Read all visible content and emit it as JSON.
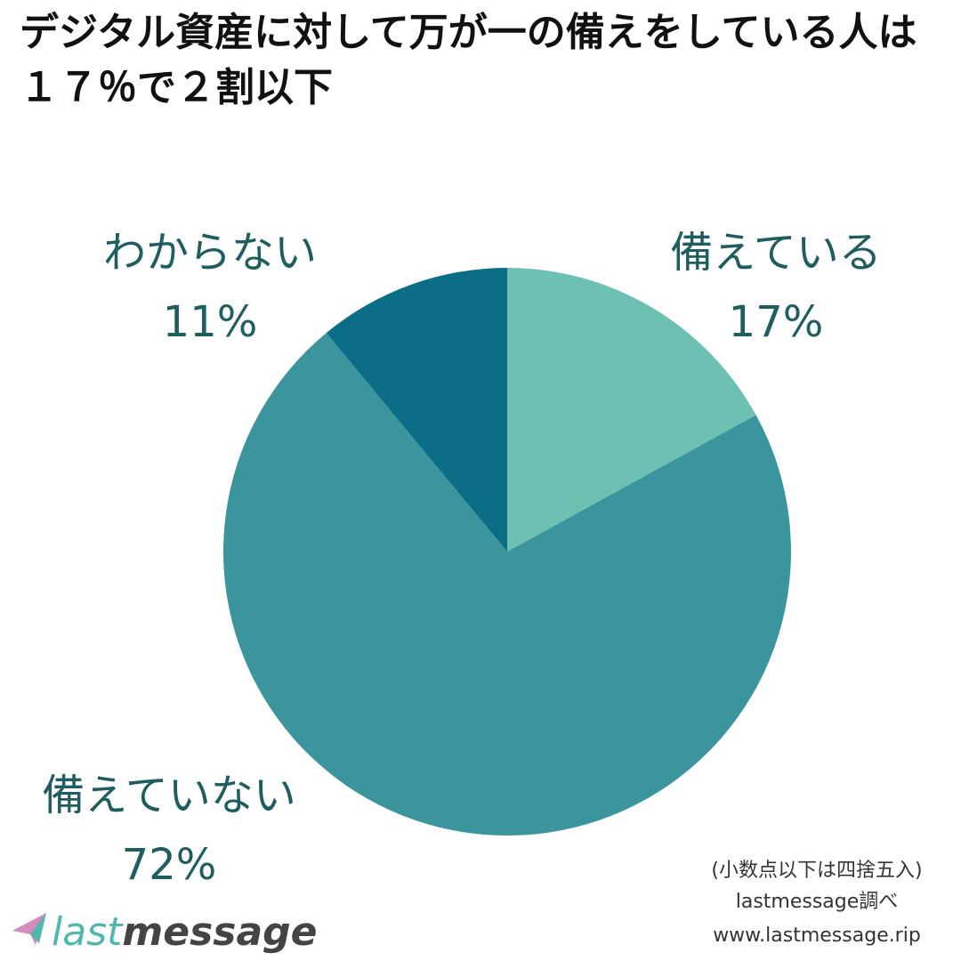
{
  "chart_data": {
    "type": "pie",
    "title": "デジタル資産に対して万が一の備えをしている人は １７％で２割以下",
    "categories": [
      "備えている",
      "備えていない",
      "わからない"
    ],
    "values": [
      17,
      72,
      11
    ],
    "value_labels": [
      "17%",
      "72%",
      "11%"
    ],
    "colors": [
      "#6cc1b2",
      "#3a959d",
      "#0b6e86"
    ],
    "notes": [
      "(小数点以下は四捨五入)",
      "lastmessage調べ",
      "www.lastmessage.rip"
    ],
    "logo": [
      "last",
      "message"
    ]
  }
}
